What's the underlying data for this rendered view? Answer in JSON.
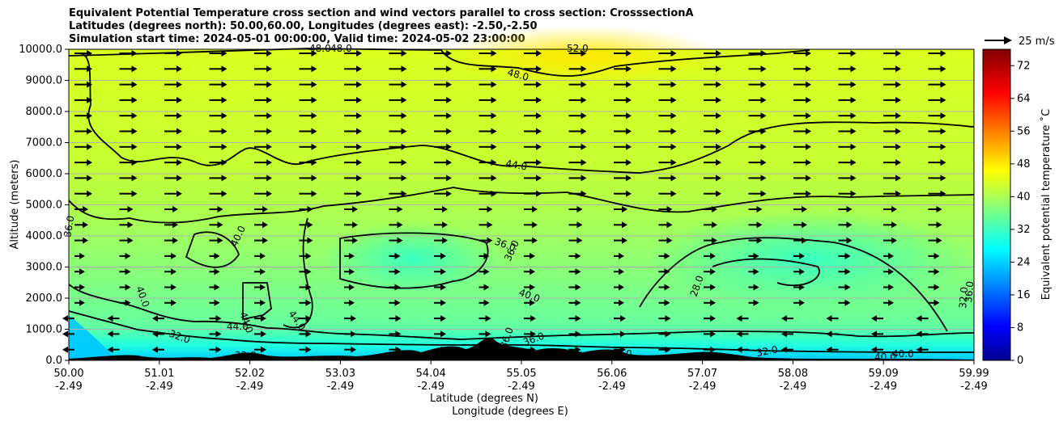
{
  "chart_data": {
    "type": "heatmap",
    "title_lines": [
      "Equivalent Potential Temperature cross section and wind vectors parallel to cross section: CrosssectionA",
      "Latitudes (degrees north): 50.00,60.00, Longitudes (degrees east): -2.50,-2.50",
      "Simulation start time: 2024-05-01 00:00:00, Valid time: 2024-05-02 23:00:00"
    ],
    "xlabel": "Latitude (degrees N)",
    "xlabel2": "Longitude (degrees E)",
    "ylabel": "Altitude (meters)",
    "x_ticks": [
      {
        "lat": "50.00",
        "lon": "-2.49"
      },
      {
        "lat": "51.01",
        "lon": "-2.49"
      },
      {
        "lat": "52.02",
        "lon": "-2.49"
      },
      {
        "lat": "53.03",
        "lon": "-2.49"
      },
      {
        "lat": "54.04",
        "lon": "-2.49"
      },
      {
        "lat": "55.05",
        "lon": "-2.49"
      },
      {
        "lat": "56.06",
        "lon": "-2.49"
      },
      {
        "lat": "57.07",
        "lon": "-2.49"
      },
      {
        "lat": "58.08",
        "lon": "-2.49"
      },
      {
        "lat": "59.09",
        "lon": "-2.49"
      },
      {
        "lat": "59.99",
        "lon": "-2.49"
      }
    ],
    "xlim": [
      50.0,
      59.99
    ],
    "y_ticks": [
      "0.0",
      "1000.0",
      "2000.0",
      "3000.0",
      "4000.0",
      "5000.0",
      "6000.0",
      "7000.0",
      "8000.0",
      "9000.0",
      "10000.0"
    ],
    "ylim": [
      0,
      10000
    ],
    "grid": true,
    "colorbar": {
      "label": "Equivalent potential temperature ˚C",
      "ticks": [
        "0",
        "8",
        "16",
        "24",
        "32",
        "40",
        "48",
        "56",
        "64",
        "72"
      ],
      "range": [
        0,
        76
      ],
      "colormap": "jet"
    },
    "quiver_key": {
      "label": "25 m/s",
      "speed": 25
    },
    "contour_levels": [
      28,
      32,
      36,
      40,
      44,
      48,
      52
    ],
    "contour_labels": [
      "48.0",
      "48.0",
      "52.0",
      "48.0",
      "44.0",
      "36.0",
      "40.0",
      "36.0",
      "36.0",
      "40.0",
      "40.0",
      "44.0",
      "44.0",
      "44.0",
      "32.0",
      "32.0",
      "36.0",
      "32.0",
      "40.0",
      "40.0",
      "36.0",
      "28.0",
      "28.0",
      "28.0",
      "36.0",
      "32.0"
    ],
    "field_description": "Theta-e field: ~24-32 C near surface (cyan/blue), 36-44 C mid levels (green), 44-52 C aloft (yellow); terrain in black"
  }
}
